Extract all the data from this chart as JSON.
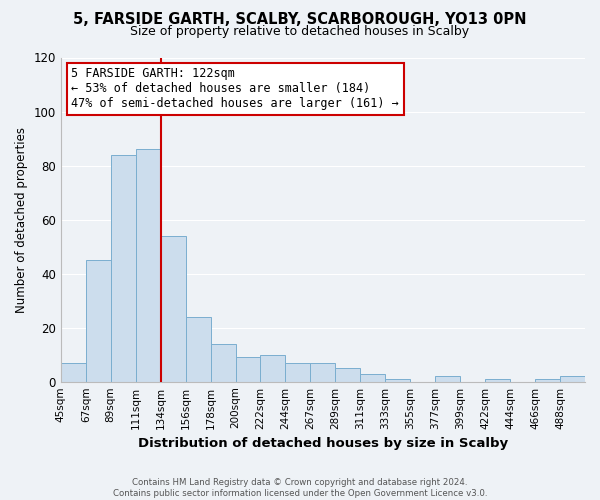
{
  "title": "5, FARSIDE GARTH, SCALBY, SCARBOROUGH, YO13 0PN",
  "subtitle": "Size of property relative to detached houses in Scalby",
  "xlabel": "Distribution of detached houses by size in Scalby",
  "ylabel": "Number of detached properties",
  "bar_labels": [
    "45sqm",
    "67sqm",
    "89sqm",
    "111sqm",
    "134sqm",
    "156sqm",
    "178sqm",
    "200sqm",
    "222sqm",
    "244sqm",
    "267sqm",
    "289sqm",
    "311sqm",
    "333sqm",
    "355sqm",
    "377sqm",
    "399sqm",
    "422sqm",
    "444sqm",
    "466sqm",
    "488sqm"
  ],
  "bar_values": [
    7,
    45,
    84,
    86,
    54,
    24,
    14,
    9,
    10,
    7,
    7,
    5,
    3,
    1,
    0,
    2,
    0,
    1,
    0,
    1,
    2
  ],
  "bar_color": "#ccdded",
  "bar_edge_color": "#7aaecf",
  "vline_x": 4.0,
  "vline_color": "#cc0000",
  "ylim": [
    0,
    120
  ],
  "yticks": [
    0,
    20,
    40,
    60,
    80,
    100,
    120
  ],
  "annotation_text": "5 FARSIDE GARTH: 122sqm\n← 53% of detached houses are smaller (184)\n47% of semi-detached houses are larger (161) →",
  "annotation_box_color": "#ffffff",
  "annotation_box_edge": "#cc0000",
  "footer1": "Contains HM Land Registry data © Crown copyright and database right 2024.",
  "footer2": "Contains public sector information licensed under the Open Government Licence v3.0.",
  "background_color": "#eef2f6",
  "grid_color": "#ffffff",
  "title_fontsize": 10.5,
  "subtitle_fontsize": 9,
  "ylabel_fontsize": 8.5,
  "xlabel_fontsize": 9.5,
  "tick_fontsize": 7.5,
  "annotation_fontsize": 8.5
}
